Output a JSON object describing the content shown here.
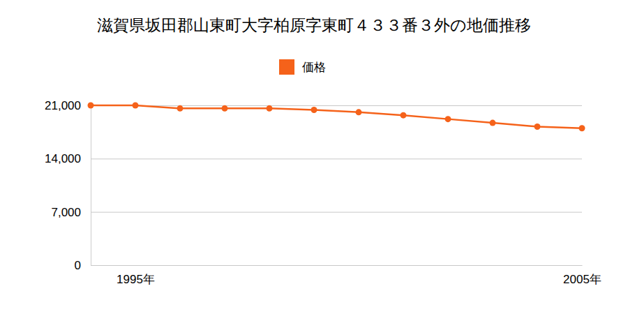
{
  "chart_data": {
    "type": "line",
    "title": "滋賀県坂田郡山東町大字柏原字東町４３３番３外の地価推移",
    "categories": [
      null,
      "1995年",
      null,
      null,
      null,
      null,
      null,
      null,
      null,
      null,
      null,
      "2005年"
    ],
    "series": [
      {
        "name": "価格",
        "color": "#f5621a",
        "marker": "circle",
        "values": [
          21000,
          21000,
          20600,
          20600,
          20600,
          20400,
          20100,
          19700,
          19200,
          18700,
          18200,
          18000
        ]
      }
    ],
    "ylim": [
      0,
      21000
    ],
    "yticks": [
      0,
      {
        "value": 7000,
        "label": "7,000"
      },
      {
        "value": 14000,
        "label": "14,000"
      },
      {
        "value": 21000,
        "label": "21,000"
      }
    ],
    "grid": true,
    "legend": "top"
  }
}
